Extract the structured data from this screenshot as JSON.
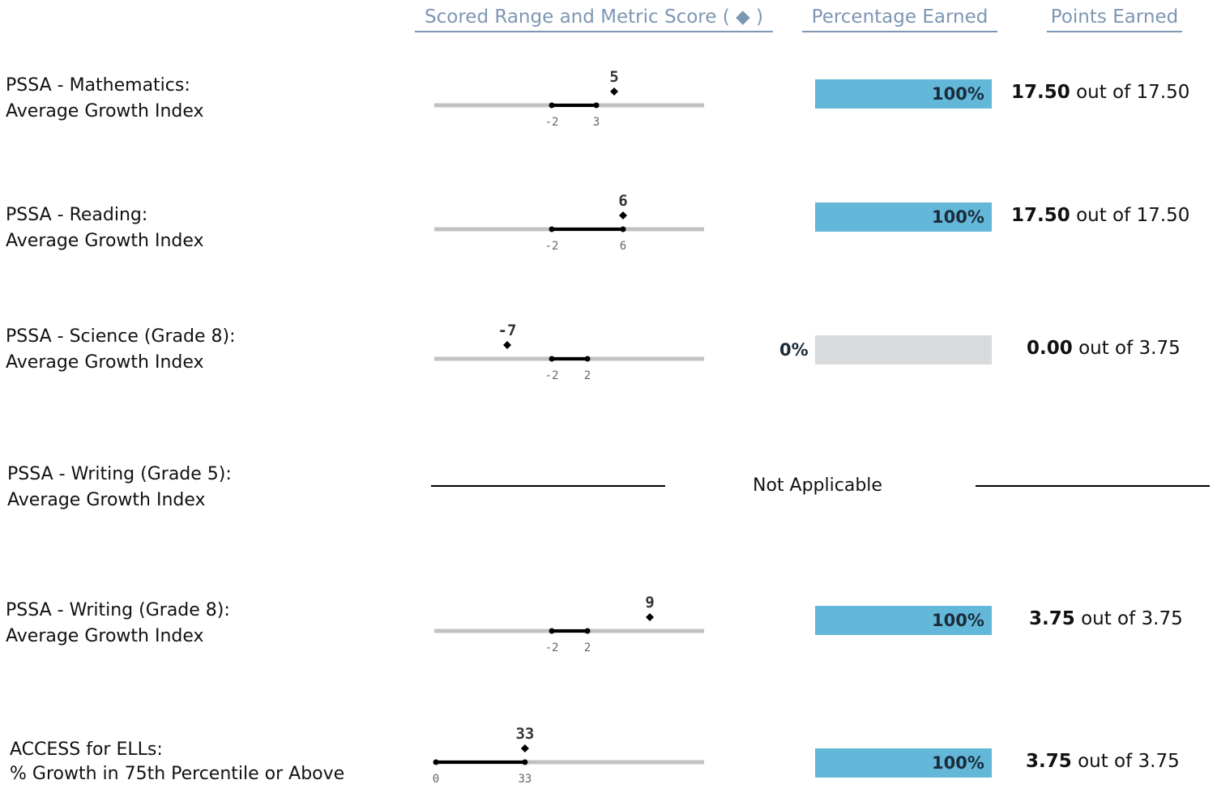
{
  "headers": {
    "scored_range": "Scored Range and Metric Score",
    "diamond_symbol": "( ◆ )",
    "percentage_earned": "Percentage Earned",
    "points_earned": "Points Earned"
  },
  "rows": [
    {
      "title": "PSSA - Mathematics:",
      "subtitle": "Average Growth Index",
      "range_low": -2,
      "range_high": 3,
      "score": 5,
      "range_low_label": "-2",
      "range_high_label": "3",
      "score_label": "5",
      "percent": 100,
      "percent_label": "100%",
      "points": "17.50",
      "out_of_text": "out of",
      "total": "17.50"
    },
    {
      "title": "PSSA - Reading:",
      "subtitle": "Average Growth Index",
      "range_low": -2,
      "range_high": 6,
      "score": 6,
      "range_low_label": "-2",
      "range_high_label": "6",
      "score_label": "6",
      "percent": 100,
      "percent_label": "100%",
      "points": "17.50",
      "out_of_text": "out of",
      "total": "17.50"
    },
    {
      "title": "PSSA - Science (Grade 8):",
      "subtitle": "Average Growth Index",
      "range_low": -2,
      "range_high": 2,
      "score": -7,
      "range_low_label": "-2",
      "range_high_label": "2",
      "score_label": "-7",
      "percent": 0,
      "percent_label": "0%",
      "points": "0.00",
      "out_of_text": "out of",
      "total": "3.75"
    },
    {
      "title": "PSSA - Writing (Grade 5):",
      "subtitle": "Average Growth Index",
      "not_applicable": "Not Applicable"
    },
    {
      "title": "PSSA - Writing (Grade 8):",
      "subtitle": "Average Growth Index",
      "range_low": -2,
      "range_high": 2,
      "score": 9,
      "range_low_label": "-2",
      "range_high_label": "2",
      "score_label": "9",
      "percent": 100,
      "percent_label": "100%",
      "points": "3.75",
      "out_of_text": "out of",
      "total": "3.75"
    },
    {
      "title": "ACCESS for ELLs:",
      "subtitle": "% Growth in 75th Percentile or Above",
      "range_low": 0,
      "range_high": 33,
      "score": 33,
      "range_low_label": "0",
      "range_high_label": "33",
      "score_label": "33",
      "percent": 100,
      "percent_label": "100%",
      "points": "3.75",
      "out_of_text": "out of",
      "total": "3.75"
    }
  ],
  "colors": {
    "header_text": "#7d96b3",
    "bar_fill": "#63b7d8",
    "bar_empty": "#d9dadb",
    "axis_line": "#c2c2c2",
    "range_line": "#000000"
  }
}
